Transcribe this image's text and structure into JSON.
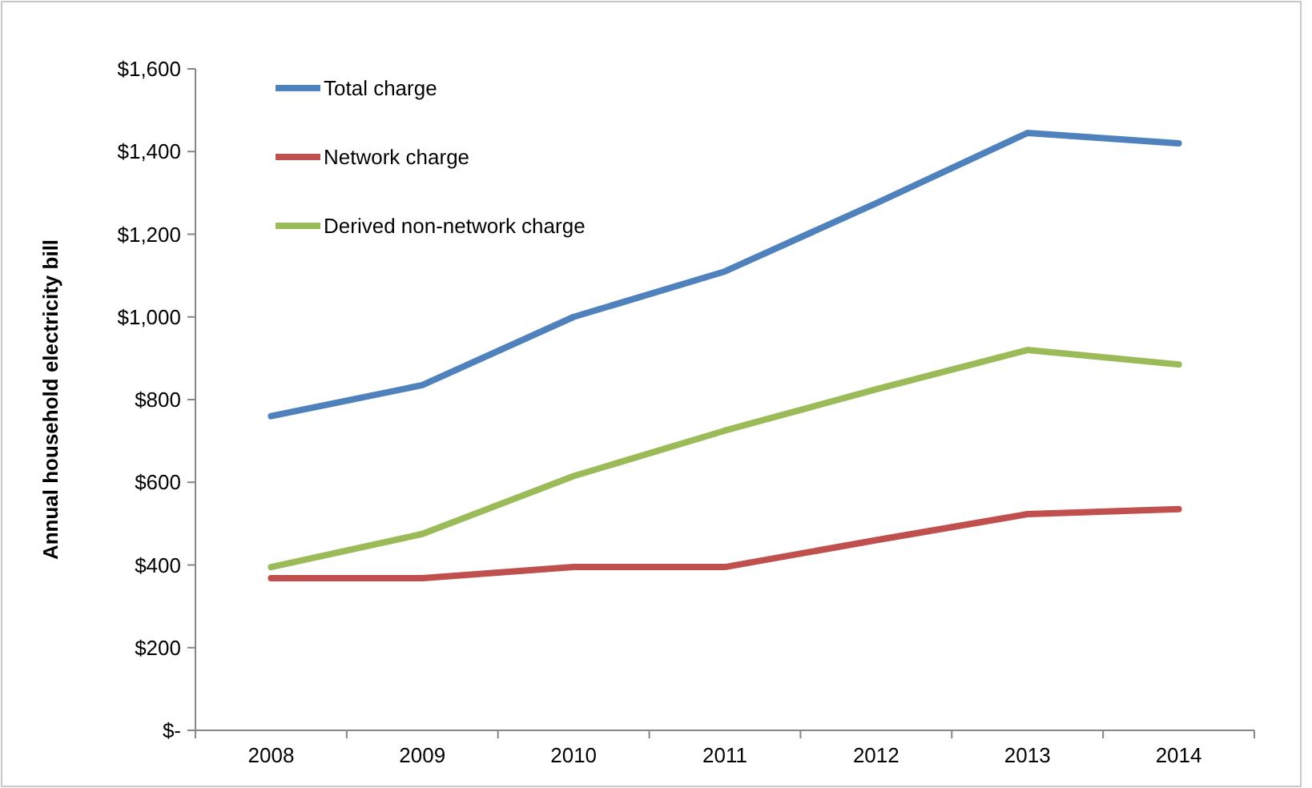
{
  "chart_data": {
    "type": "line",
    "ylabel": "Annual household electricity bill",
    "categories": [
      "2008",
      "2009",
      "2010",
      "2011",
      "2012",
      "2013",
      "2014"
    ],
    "series": [
      {
        "name": "Total charge",
        "color": "#4f81bd",
        "values": [
          760,
          835,
          1000,
          1110,
          1275,
          1445,
          1420
        ]
      },
      {
        "name": "Network charge",
        "color": "#c0504d",
        "values": [
          368,
          368,
          395,
          395,
          460,
          523,
          535
        ]
      },
      {
        "name": "Derived non-network charge",
        "color": "#9bbb59",
        "values": [
          395,
          475,
          615,
          725,
          825,
          920,
          885
        ]
      }
    ],
    "ylim": [
      0,
      1600
    ],
    "yticks": [
      {
        "value": 0,
        "label": "$-"
      },
      {
        "value": 200,
        "label": "$200"
      },
      {
        "value": 400,
        "label": "$400"
      },
      {
        "value": 600,
        "label": "$600"
      },
      {
        "value": 800,
        "label": "$800"
      },
      {
        "value": 1000,
        "label": "$1,000"
      },
      {
        "value": 1200,
        "label": "$1,200"
      },
      {
        "value": 1400,
        "label": "$1,400"
      },
      {
        "value": 1600,
        "label": "$1,600"
      }
    ],
    "grid": false,
    "legend": "top left",
    "marker": "none",
    "line_style": "solid"
  }
}
